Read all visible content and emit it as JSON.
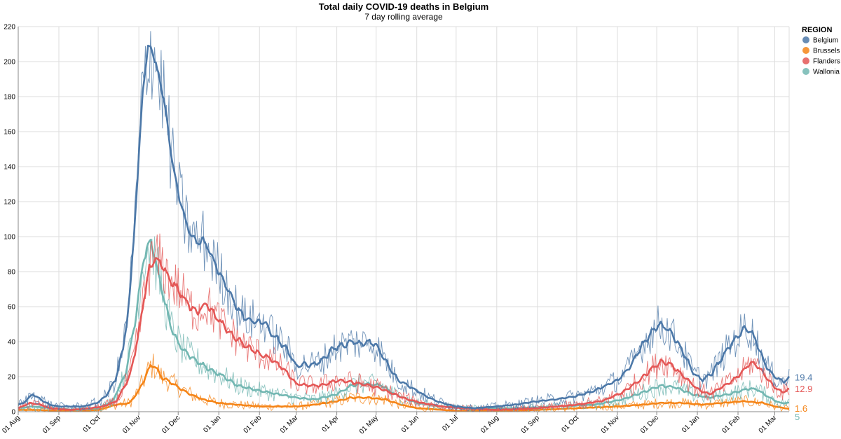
{
  "chart_data": {
    "type": "line",
    "title": "Total daily COVID-19 deaths in Belgium",
    "subtitle": "7 day rolling average",
    "x_start": "2020-08-01",
    "x_end": "2022-03-12",
    "x_tick_labels": [
      "01 Aug",
      "01 Sep",
      "01 Oct",
      "01 Nov",
      "01 Dec",
      "01 Jan",
      "01 Feb",
      "01 Mar",
      "01 Apr",
      "01 May",
      "01 Jun",
      "01 Jul",
      "01 Aug",
      "01 Sep",
      "01 Oct",
      "01 Nov",
      "01 Dec",
      "01 Jan",
      "01 Feb",
      "01 Mar"
    ],
    "x_tick_dates": [
      "2020-08-01",
      "2020-09-01",
      "2020-10-01",
      "2020-11-01",
      "2020-12-01",
      "2021-01-01",
      "2021-02-01",
      "2021-03-01",
      "2021-04-01",
      "2021-05-01",
      "2021-06-01",
      "2021-07-01",
      "2021-08-01",
      "2021-09-01",
      "2021-10-01",
      "2021-11-01",
      "2021-12-01",
      "2022-01-01",
      "2022-02-01",
      "2022-03-01"
    ],
    "y_ticks": [
      0,
      20,
      40,
      60,
      80,
      100,
      120,
      140,
      160,
      180,
      200,
      220
    ],
    "ylim": [
      0,
      220
    ],
    "grid": true,
    "legend": {
      "title": "REGION",
      "position": "right"
    },
    "series": [
      {
        "name": "Belgium",
        "color": "#4c78a8",
        "last_label": "19.4",
        "points": [
          [
            "2020-08-01",
            4
          ],
          [
            "2020-08-05",
            5
          ],
          [
            "2020-08-12",
            10
          ],
          [
            "2020-08-18",
            7
          ],
          [
            "2020-08-25",
            4
          ],
          [
            "2020-09-01",
            3
          ],
          [
            "2020-09-10",
            3
          ],
          [
            "2020-09-20",
            3
          ],
          [
            "2020-09-30",
            5
          ],
          [
            "2020-10-07",
            9
          ],
          [
            "2020-10-14",
            18
          ],
          [
            "2020-10-20",
            36
          ],
          [
            "2020-10-25",
            65
          ],
          [
            "2020-10-29",
            110
          ],
          [
            "2020-11-01",
            145
          ],
          [
            "2020-11-04",
            185
          ],
          [
            "2020-11-08",
            207
          ],
          [
            "2020-11-11",
            208
          ],
          [
            "2020-11-15",
            195
          ],
          [
            "2020-11-20",
            180
          ],
          [
            "2020-11-25",
            150
          ],
          [
            "2020-12-01",
            125
          ],
          [
            "2020-12-08",
            105
          ],
          [
            "2020-12-15",
            97
          ],
          [
            "2020-12-20",
            98
          ],
          [
            "2020-12-26",
            90
          ],
          [
            "2021-01-01",
            80
          ],
          [
            "2021-01-08",
            70
          ],
          [
            "2021-01-15",
            59
          ],
          [
            "2021-01-22",
            53
          ],
          [
            "2021-01-29",
            52
          ],
          [
            "2021-02-05",
            51
          ],
          [
            "2021-02-10",
            45
          ],
          [
            "2021-02-17",
            40
          ],
          [
            "2021-02-24",
            33
          ],
          [
            "2021-03-01",
            26
          ],
          [
            "2021-03-08",
            27
          ],
          [
            "2021-03-15",
            27
          ],
          [
            "2021-03-22",
            30
          ],
          [
            "2021-03-29",
            36
          ],
          [
            "2021-04-05",
            38
          ],
          [
            "2021-04-12",
            40
          ],
          [
            "2021-04-19",
            39
          ],
          [
            "2021-04-26",
            40
          ],
          [
            "2021-05-01",
            38
          ],
          [
            "2021-05-06",
            32
          ],
          [
            "2021-05-12",
            24
          ],
          [
            "2021-05-18",
            18
          ],
          [
            "2021-05-25",
            15
          ],
          [
            "2021-06-01",
            12
          ],
          [
            "2021-06-10",
            8
          ],
          [
            "2021-06-20",
            5
          ],
          [
            "2021-07-01",
            3
          ],
          [
            "2021-07-15",
            2
          ],
          [
            "2021-08-01",
            3
          ],
          [
            "2021-08-15",
            4
          ],
          [
            "2021-09-01",
            6
          ],
          [
            "2021-09-15",
            7
          ],
          [
            "2021-10-01",
            9
          ],
          [
            "2021-10-15",
            12
          ],
          [
            "2021-11-01",
            18
          ],
          [
            "2021-11-10",
            25
          ],
          [
            "2021-11-20",
            38
          ],
          [
            "2021-11-28",
            46
          ],
          [
            "2021-12-03",
            50
          ],
          [
            "2021-12-08",
            48
          ],
          [
            "2021-12-15",
            42
          ],
          [
            "2021-12-22",
            33
          ],
          [
            "2021-12-29",
            22
          ],
          [
            "2022-01-05",
            18
          ],
          [
            "2022-01-12",
            22
          ],
          [
            "2022-01-19",
            30
          ],
          [
            "2022-01-26",
            38
          ],
          [
            "2022-02-01",
            43
          ],
          [
            "2022-02-06",
            48
          ],
          [
            "2022-02-10",
            47
          ],
          [
            "2022-02-15",
            40
          ],
          [
            "2022-02-20",
            30
          ],
          [
            "2022-02-26",
            22
          ],
          [
            "2022-03-03",
            19
          ],
          [
            "2022-03-08",
            17
          ],
          [
            "2022-03-12",
            19.4
          ]
        ]
      },
      {
        "name": "Brussels",
        "color": "#f58518",
        "last_label": "1.6",
        "points": [
          [
            "2020-08-01",
            1
          ],
          [
            "2020-08-15",
            1
          ],
          [
            "2020-09-01",
            0.5
          ],
          [
            "2020-09-20",
            0.5
          ],
          [
            "2020-10-01",
            1
          ],
          [
            "2020-10-15",
            4
          ],
          [
            "2020-10-25",
            5
          ],
          [
            "2020-11-01",
            12
          ],
          [
            "2020-11-06",
            20
          ],
          [
            "2020-11-10",
            26
          ],
          [
            "2020-11-13",
            26
          ],
          [
            "2020-11-18",
            20
          ],
          [
            "2020-11-25",
            17
          ],
          [
            "2020-12-01",
            14
          ],
          [
            "2020-12-10",
            10
          ],
          [
            "2020-12-20",
            7
          ],
          [
            "2021-01-01",
            5
          ],
          [
            "2021-01-15",
            4
          ],
          [
            "2021-02-01",
            3
          ],
          [
            "2021-02-15",
            3
          ],
          [
            "2021-03-01",
            3
          ],
          [
            "2021-03-15",
            4
          ],
          [
            "2021-04-01",
            6
          ],
          [
            "2021-04-12",
            8
          ],
          [
            "2021-04-25",
            8
          ],
          [
            "2021-05-08",
            7
          ],
          [
            "2021-05-20",
            4
          ],
          [
            "2021-06-01",
            2
          ],
          [
            "2021-07-01",
            0.5
          ],
          [
            "2021-08-01",
            0.5
          ],
          [
            "2021-09-01",
            1
          ],
          [
            "2021-10-01",
            2
          ],
          [
            "2021-11-01",
            3
          ],
          [
            "2021-11-20",
            4
          ],
          [
            "2021-12-05",
            5
          ],
          [
            "2021-12-20",
            5
          ],
          [
            "2022-01-05",
            4
          ],
          [
            "2022-01-20",
            5
          ],
          [
            "2022-02-05",
            6
          ],
          [
            "2022-02-20",
            5
          ],
          [
            "2022-03-01",
            3
          ],
          [
            "2022-03-12",
            1.6
          ]
        ]
      },
      {
        "name": "Flanders",
        "color": "#e45756",
        "last_label": "12.9",
        "points": [
          [
            "2020-08-01",
            2
          ],
          [
            "2020-08-10",
            5
          ],
          [
            "2020-08-18",
            4
          ],
          [
            "2020-08-25",
            2
          ],
          [
            "2020-09-10",
            1
          ],
          [
            "2020-09-25",
            2
          ],
          [
            "2020-10-05",
            3
          ],
          [
            "2020-10-15",
            6
          ],
          [
            "2020-10-25",
            20
          ],
          [
            "2020-11-01",
            45
          ],
          [
            "2020-11-05",
            65
          ],
          [
            "2020-11-09",
            82
          ],
          [
            "2020-11-13",
            87
          ],
          [
            "2020-11-18",
            85
          ],
          [
            "2020-11-25",
            75
          ],
          [
            "2020-12-01",
            70
          ],
          [
            "2020-12-10",
            60
          ],
          [
            "2020-12-16",
            57
          ],
          [
            "2020-12-22",
            62
          ],
          [
            "2021-01-01",
            52
          ],
          [
            "2021-01-10",
            45
          ],
          [
            "2021-01-20",
            38
          ],
          [
            "2021-02-01",
            33
          ],
          [
            "2021-02-10",
            30
          ],
          [
            "2021-02-20",
            24
          ],
          [
            "2021-03-01",
            16
          ],
          [
            "2021-03-10",
            15
          ],
          [
            "2021-03-20",
            15
          ],
          [
            "2021-04-01",
            18
          ],
          [
            "2021-04-12",
            17
          ],
          [
            "2021-04-25",
            15
          ],
          [
            "2021-05-05",
            13
          ],
          [
            "2021-05-15",
            10
          ],
          [
            "2021-05-25",
            7
          ],
          [
            "2021-06-05",
            5
          ],
          [
            "2021-06-20",
            3
          ],
          [
            "2021-07-05",
            2
          ],
          [
            "2021-08-01",
            1
          ],
          [
            "2021-09-01",
            2
          ],
          [
            "2021-10-01",
            4
          ],
          [
            "2021-10-20",
            6
          ],
          [
            "2021-11-05",
            11
          ],
          [
            "2021-11-18",
            18
          ],
          [
            "2021-11-28",
            25
          ],
          [
            "2021-12-05",
            29
          ],
          [
            "2021-12-12",
            27
          ],
          [
            "2021-12-20",
            21
          ],
          [
            "2022-01-01",
            13
          ],
          [
            "2022-01-10",
            10
          ],
          [
            "2022-01-20",
            14
          ],
          [
            "2022-02-01",
            20
          ],
          [
            "2022-02-10",
            28
          ],
          [
            "2022-02-15",
            27
          ],
          [
            "2022-02-22",
            20
          ],
          [
            "2022-03-01",
            14
          ],
          [
            "2022-03-07",
            11
          ],
          [
            "2022-03-12",
            12.9
          ]
        ]
      },
      {
        "name": "Wallonia",
        "color": "#72b7b2",
        "last_label": "5",
        "points": [
          [
            "2020-08-01",
            2
          ],
          [
            "2020-08-12",
            3
          ],
          [
            "2020-08-25",
            2
          ],
          [
            "2020-09-15",
            1
          ],
          [
            "2020-10-01",
            2
          ],
          [
            "2020-10-12",
            6
          ],
          [
            "2020-10-22",
            22
          ],
          [
            "2020-10-30",
            55
          ],
          [
            "2020-11-04",
            85
          ],
          [
            "2020-11-08",
            95
          ],
          [
            "2020-11-10",
            97
          ],
          [
            "2020-11-14",
            85
          ],
          [
            "2020-11-20",
            65
          ],
          [
            "2020-11-27",
            45
          ],
          [
            "2020-12-05",
            35
          ],
          [
            "2020-12-15",
            29
          ],
          [
            "2020-12-25",
            24
          ],
          [
            "2021-01-05",
            20
          ],
          [
            "2021-01-15",
            15
          ],
          [
            "2021-02-01",
            12
          ],
          [
            "2021-02-15",
            10
          ],
          [
            "2021-03-01",
            8
          ],
          [
            "2021-03-15",
            7
          ],
          [
            "2021-04-01",
            10
          ],
          [
            "2021-04-12",
            15
          ],
          [
            "2021-04-22",
            16
          ],
          [
            "2021-05-05",
            15
          ],
          [
            "2021-05-15",
            10
          ],
          [
            "2021-06-01",
            5
          ],
          [
            "2021-06-20",
            3
          ],
          [
            "2021-07-15",
            2
          ],
          [
            "2021-08-15",
            2
          ],
          [
            "2021-09-15",
            3
          ],
          [
            "2021-10-15",
            4
          ],
          [
            "2021-11-05",
            7
          ],
          [
            "2021-11-20",
            11
          ],
          [
            "2021-12-05",
            15
          ],
          [
            "2021-12-15",
            14
          ],
          [
            "2021-12-28",
            10
          ],
          [
            "2022-01-10",
            8
          ],
          [
            "2022-01-25",
            10
          ],
          [
            "2022-02-08",
            13
          ],
          [
            "2022-02-15",
            13
          ],
          [
            "2022-02-25",
            8
          ],
          [
            "2022-03-05",
            5
          ],
          [
            "2022-03-12",
            5
          ]
        ]
      }
    ]
  }
}
